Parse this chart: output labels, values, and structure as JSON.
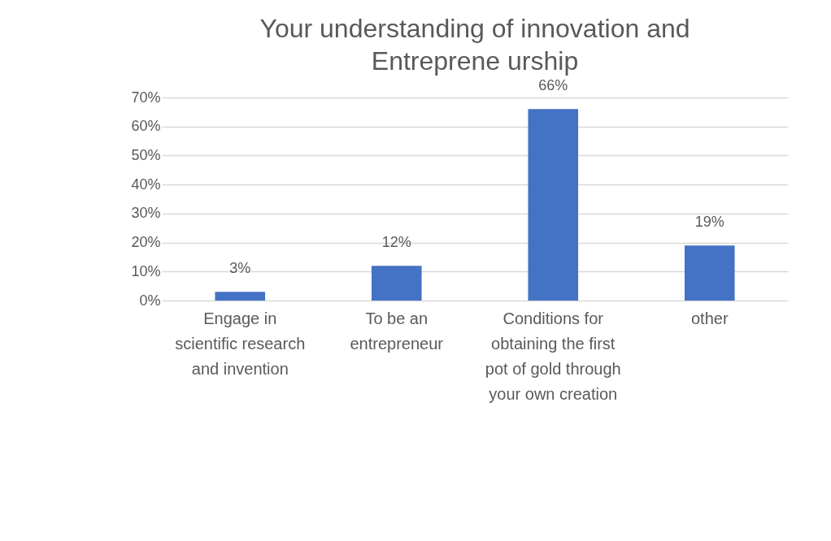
{
  "chart_data": {
    "type": "bar",
    "title": "Your  understanding of innovation and\nEntreprene urship",
    "categories": [
      "Engage in scientific research and invention",
      "To be an entrepreneur",
      "Conditions for obtaining the first pot of gold through your own creation",
      "other"
    ],
    "values": [
      3,
      12,
      66,
      19
    ],
    "color": "#4472c4",
    "value_labels": [
      "3%",
      "12%",
      "66%",
      "19%"
    ],
    "ylim": [
      0,
      70
    ],
    "yticks": [
      {
        "value": 0,
        "label": "0%"
      },
      {
        "value": 10,
        "label": "10%"
      },
      {
        "value": 20,
        "label": "20%"
      },
      {
        "value": 30,
        "label": "30%"
      },
      {
        "value": 40,
        "label": "40%"
      },
      {
        "value": 50,
        "label": "50%"
      },
      {
        "value": 60,
        "label": "60%"
      },
      {
        "value": 70,
        "label": "70%"
      }
    ],
    "grid": "y"
  }
}
